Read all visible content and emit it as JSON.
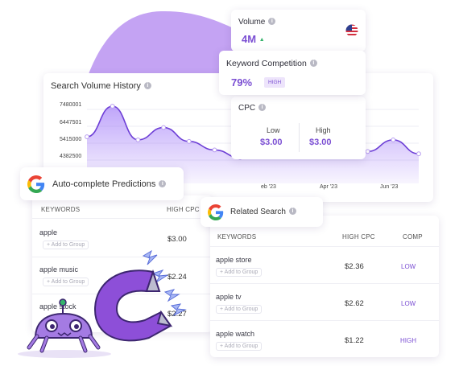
{
  "colors": {
    "accent": "#8b5cf6",
    "blob": "#c4a3f3",
    "low": "#7b4fd3",
    "high": "#7b4fd3"
  },
  "volume": {
    "label": "Volume",
    "value": "4M",
    "trend_icon": "up-triangle-icon",
    "flag_icon": "us-flag-icon"
  },
  "competition": {
    "label": "Keyword Competition",
    "value": "79%",
    "badge": "HIGH"
  },
  "cpc": {
    "label": "CPC",
    "low_label": "Low",
    "low_value": "$3.00",
    "high_label": "High",
    "high_value": "$3.00"
  },
  "history": {
    "title": "Search Volume History",
    "y_ticks": [
      "7480001",
      "6447501",
      "5415000",
      "4382500"
    ],
    "x_ticks": [
      "eb '23",
      "Apr '23",
      "Jun '23"
    ]
  },
  "autocomplete": {
    "title": "Auto-complete Predictions",
    "col_keywords": "KEYWORDS",
    "col_cpc": "HIGH CPC",
    "add_label": "+ Add to Group",
    "rows": [
      {
        "keyword": "apple",
        "cpc": "$3.00"
      },
      {
        "keyword": "apple music",
        "cpc": "$2.24"
      },
      {
        "keyword": "apple stock",
        "cpc": "$2.27"
      }
    ]
  },
  "related": {
    "title": "Related Search",
    "col_keywords": "KEYWORDS",
    "col_cpc": "HIGH CPC",
    "col_comp": "COMP",
    "add_label": "+ Add to Group",
    "rows": [
      {
        "keyword": "apple store",
        "cpc": "$2.36",
        "comp": "LOW"
      },
      {
        "keyword": "apple tv",
        "cpc": "$2.62",
        "comp": "LOW"
      },
      {
        "keyword": "apple watch",
        "cpc": "$1.22",
        "comp": "HIGH"
      }
    ]
  },
  "chart_data": {
    "type": "area",
    "title": "Search Volume History",
    "y_tick_labels": [
      "7480001",
      "6447501",
      "5415000",
      "4382500"
    ],
    "x_tick_labels": [
      "eb '23",
      "Apr '23",
      "Jun '23"
    ],
    "series": [
      {
        "values": [
          5500000,
          7480000,
          5300000,
          6100000,
          5200000,
          4650000,
          4150000,
          4350000,
          4300000,
          4800000,
          4300000,
          4550000,
          5300000,
          4400000
        ]
      }
    ]
  }
}
